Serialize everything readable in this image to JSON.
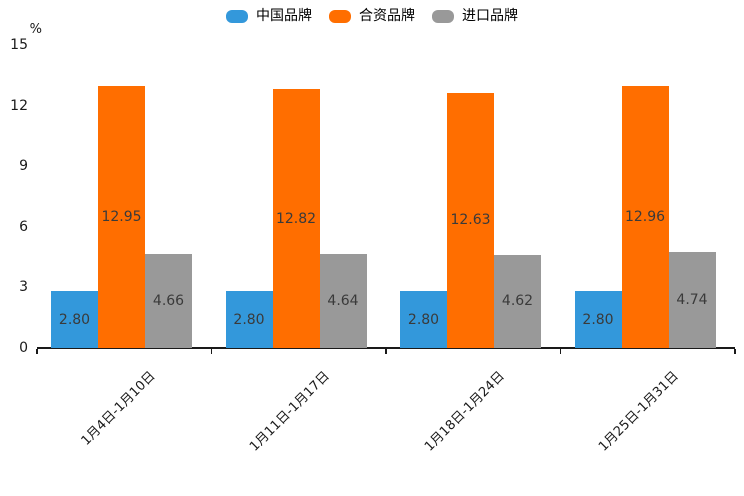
{
  "colors": {
    "china_brand": "#3398DB",
    "joint_venture_brand": "#FF6E00",
    "import_brand": "#999999",
    "axis": "#1a1a1a",
    "tick_label": "#1a1a1a",
    "value_label": "#3a3a3a",
    "legend_text": "#000000"
  },
  "legend": [
    {
      "id": "china-brand",
      "label": "中国品牌",
      "color": "#3398DB"
    },
    {
      "id": "joint-venture-brand",
      "label": "合资品牌",
      "color": "#FF6E00"
    },
    {
      "id": "import-brand",
      "label": "进口品牌",
      "color": "#999999"
    }
  ],
  "chart_data": {
    "type": "bar",
    "title": "",
    "ylabel": "%",
    "xlabel": "",
    "categories": [
      "1月4日-1月10日",
      "1月11日-1月17日",
      "1月18日-1月24日",
      "1月25日-1月31日"
    ],
    "series": [
      {
        "id": "china-brand",
        "name": "中国品牌",
        "color": "#3398DB",
        "values": [
          2.8,
          2.8,
          2.8,
          2.8
        ]
      },
      {
        "id": "joint-venture-brand",
        "name": "合资品牌",
        "color": "#FF6E00",
        "values": [
          12.95,
          12.82,
          12.63,
          12.96
        ]
      },
      {
        "id": "import-brand",
        "name": "进口品牌",
        "color": "#999999",
        "values": [
          4.66,
          4.64,
          4.62,
          4.74
        ]
      }
    ],
    "ylim": [
      0,
      15
    ],
    "yticks": [
      0,
      3,
      6,
      9,
      12,
      15
    ],
    "grid": false,
    "legend_position": "top",
    "value_labels": true,
    "value_label_decimals": 2,
    "x_label_rotation_deg": 45
  }
}
